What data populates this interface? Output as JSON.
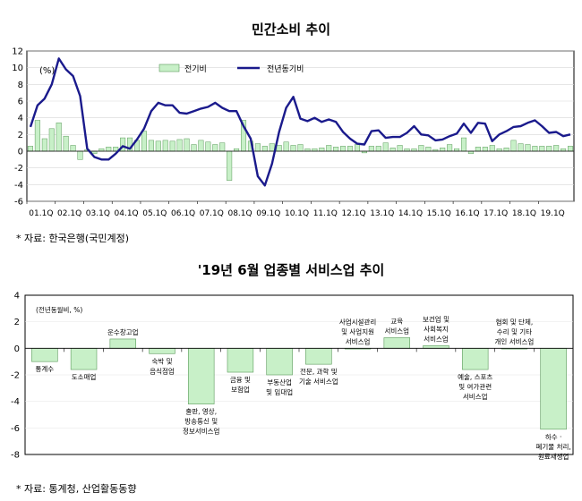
{
  "chart_data": [
    {
      "type": "bar+line",
      "title": "민간소비 추이",
      "unit_label": "(%)",
      "ylim": [
        -6,
        12
      ],
      "yticks": [
        -6,
        -4,
        -2,
        0,
        2,
        4,
        6,
        8,
        10,
        12
      ],
      "x_tick_labels": [
        "01.1Q",
        "02.1Q",
        "03.1Q",
        "04.1Q",
        "05.1Q",
        "06.1Q",
        "07.1Q",
        "08.1Q",
        "09.1Q",
        "10.1Q",
        "11.1Q",
        "12.1Q",
        "13.1Q",
        "14.1Q",
        "15.1Q",
        "16.1Q",
        "17.1Q",
        "18.1Q",
        "19.1Q"
      ],
      "legend_position": "top",
      "series": [
        {
          "name": "전기비",
          "kind": "bar",
          "color": "#c8f0c8",
          "values": [
            0.6,
            3.7,
            1.5,
            2.7,
            3.4,
            1.8,
            0.7,
            -1.0,
            0.2,
            -0.3,
            0.3,
            0.5,
            0.5,
            1.6,
            1.6,
            1.3,
            2.4,
            1.3,
            1.2,
            1.3,
            1.2,
            1.4,
            1.5,
            0.8,
            1.3,
            1.1,
            0.8,
            1.0,
            -3.5,
            0.3,
            3.7,
            1.2,
            0.9,
            0.6,
            0.9,
            0.7,
            1.1,
            0.7,
            0.8,
            0.3,
            0.3,
            0.4,
            0.7,
            0.5,
            0.6,
            0.6,
            0.8,
            -0.2,
            0.6,
            0.6,
            1.0,
            0.4,
            0.7,
            0.3,
            0.3,
            0.7,
            0.5,
            0.2,
            0.4,
            0.8,
            0.3,
            1.6,
            -0.3,
            0.5,
            0.5,
            0.7,
            0.3,
            0.4,
            1.3,
            0.9,
            0.8,
            0.6,
            0.6,
            0.6,
            0.7,
            0.3,
            0.6
          ]
        },
        {
          "name": "전년동기비",
          "kind": "line",
          "color": "#1a1a8c",
          "values": [
            2.9,
            5.5,
            6.3,
            8.0,
            11.1,
            9.8,
            9.0,
            6.6,
            0.3,
            -0.7,
            -1.0,
            -1.0,
            -0.3,
            0.6,
            0.3,
            1.4,
            2.7,
            4.8,
            5.8,
            5.5,
            5.5,
            4.6,
            4.5,
            4.8,
            5.1,
            5.3,
            5.8,
            5.2,
            4.8,
            4.8,
            3.0,
            1.5,
            -3.0,
            -4.1,
            -1.5,
            2.3,
            5.2,
            6.5,
            3.9,
            3.6,
            4.0,
            3.5,
            3.8,
            3.5,
            2.3,
            1.5,
            0.9,
            0.8,
            2.4,
            2.5,
            1.6,
            1.7,
            1.7,
            2.2,
            3.0,
            2.0,
            1.9,
            1.3,
            1.4,
            1.8,
            2.1,
            3.3,
            2.2,
            3.4,
            3.3,
            1.2,
            2.0,
            2.4,
            2.9,
            3.0,
            3.4,
            3.7,
            3.0,
            2.2,
            2.3,
            1.8,
            2.0
          ]
        }
      ],
      "source": "* 자료: 한국은행(국민계정)"
    },
    {
      "type": "bar",
      "title": "'19년 6월 업종별 서비스업 추이",
      "unit_label": "(전년동월비, %)",
      "ylim": [
        -8,
        4
      ],
      "yticks": [
        -8,
        -6,
        -4,
        -2,
        0,
        2,
        4
      ],
      "bar_color": "#c8f0c8",
      "categories": [
        {
          "label": [
            "통계수"
          ],
          "value": -1.0
        },
        {
          "label": [
            "도소매업"
          ],
          "value": -1.6
        },
        {
          "label": [
            "운수창고업"
          ],
          "value": 0.7
        },
        {
          "label": [
            "숙박 및",
            "음식점업"
          ],
          "value": -0.4
        },
        {
          "label": [
            "출판, 영상,",
            "방송통신 및",
            "정보서비스업"
          ],
          "value": -4.2
        },
        {
          "label": [
            "금융 및",
            "보험업"
          ],
          "value": -1.8
        },
        {
          "label": [
            "부동산업",
            "및 임대업"
          ],
          "value": -2.0
        },
        {
          "label": [
            "전문, 과학 및",
            "기술 서비스업"
          ],
          "value": -1.2
        },
        {
          "label": [
            "사업시설관리",
            "및 사업지원",
            "서비스업"
          ],
          "value": 0.0
        },
        {
          "label": [
            "교육",
            "서비스업"
          ],
          "value": 0.8
        },
        {
          "label": [
            "보건업 및",
            "사회복지",
            "서비스업"
          ],
          "value": 0.2
        },
        {
          "label": [
            "예술, 스포츠",
            "및 여가관련",
            "서비스업"
          ],
          "value": -1.6
        },
        {
          "label": [
            "협회 및 단체,",
            "수리 및 기타",
            "개인 서비스업"
          ],
          "value": 0.0
        },
        {
          "label": [
            "하수 ·",
            "폐기물 처리,",
            "원료재생업"
          ],
          "value": -6.1
        }
      ],
      "source": "* 자료: 통계청, 산업활동동향"
    }
  ]
}
